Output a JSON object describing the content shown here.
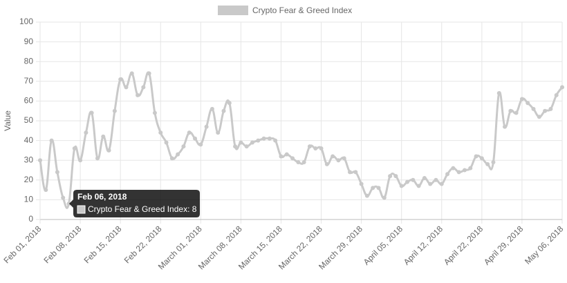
{
  "chart_data": {
    "type": "line",
    "categories": [
      "Feb 01, 2018",
      null,
      null,
      null,
      null,
      null,
      null,
      "Feb 08, 2018",
      null,
      null,
      null,
      null,
      null,
      null,
      "Feb 15, 2018",
      null,
      null,
      null,
      null,
      null,
      null,
      "Feb 22, 2018",
      null,
      null,
      null,
      null,
      null,
      null,
      "March 01, 2018",
      null,
      null,
      null,
      null,
      null,
      null,
      "March 08, 2018",
      null,
      null,
      null,
      null,
      null,
      null,
      "March 15, 2018",
      null,
      null,
      null,
      null,
      null,
      null,
      "March 22, 2018",
      null,
      null,
      null,
      null,
      null,
      null,
      "March 29, 2018",
      null,
      null,
      null,
      null,
      null,
      null,
      "April 05, 2018",
      null,
      null,
      null,
      null,
      null,
      null,
      "April 12, 2018",
      null,
      null,
      null,
      null,
      null,
      null,
      "April 22, 2018",
      null,
      null,
      null,
      null,
      null,
      null,
      "April 29, 2018",
      null,
      null,
      null,
      null,
      null,
      null,
      "May 06, 2018"
    ],
    "series": [
      {
        "name": "Crypto Fear & Greed Index",
        "color": "#c9c9c9",
        "values": [
          30,
          15,
          40,
          24,
          11,
          8,
          36,
          30,
          44,
          54,
          31,
          42,
          35,
          55,
          71,
          67,
          74,
          63,
          67,
          74,
          54,
          44,
          39,
          31,
          33,
          37,
          44,
          41,
          38,
          47,
          56,
          44,
          55,
          59,
          37,
          39,
          37,
          39,
          40,
          41,
          41,
          40,
          32,
          33,
          31,
          29,
          29,
          37,
          36,
          36,
          28,
          32,
          30,
          31,
          24,
          24,
          18,
          12,
          16,
          16,
          11,
          22,
          22,
          17,
          19,
          20,
          17,
          21,
          18,
          20,
          18,
          23,
          26,
          24,
          25,
          26,
          32,
          31,
          28,
          29,
          64,
          47,
          55,
          54,
          61,
          59,
          56,
          52,
          55,
          56,
          63,
          67
        ]
      }
    ],
    "y_label": "Value",
    "ylim": [
      0,
      100
    ],
    "yticks": [
      0,
      10,
      20,
      30,
      40,
      50,
      60,
      70,
      80,
      90,
      100
    ],
    "grid": true,
    "legend": "top",
    "tooltip": {
      "title": "Feb 06, 2018",
      "label": "Crypto Fear & Greed Index: 8"
    }
  }
}
